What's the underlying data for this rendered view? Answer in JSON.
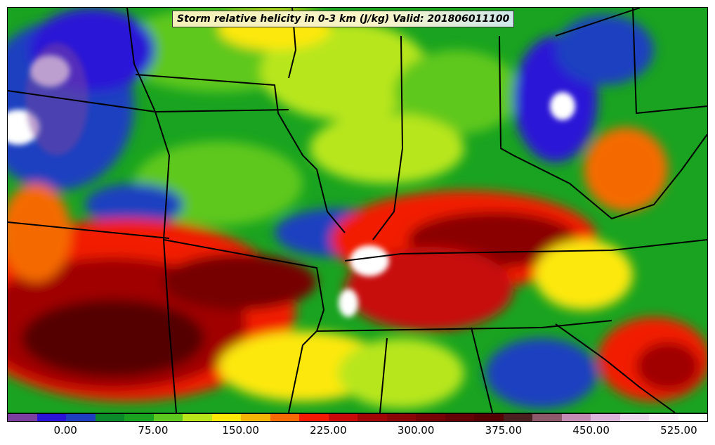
{
  "title": "Storm relative helicity in 0-3 km (J/kg) Valid: 201806011100",
  "colorbar": {
    "colors": [
      "#7b3fa0",
      "#2a12d6",
      "#1e40c0",
      "#0b8a2a",
      "#19a320",
      "#5fc81e",
      "#b8e61a",
      "#fde80a",
      "#f5b405",
      "#f56a05",
      "#f21a05",
      "#c80a0a",
      "#a00606",
      "#8a0505",
      "#760404",
      "#640303",
      "#540202",
      "#4a1f1f",
      "#8c5a6a",
      "#c48cb4",
      "#dcb4dc",
      "#f0dcf0",
      "#faeefa",
      "#ffffff"
    ],
    "tick_labels": [
      "0.00",
      "75.00",
      "150.00",
      "225.00",
      "300.00",
      "375.00",
      "450.00",
      "525.00"
    ],
    "tick_values": [
      0,
      75,
      150,
      225,
      300,
      375,
      450,
      525
    ],
    "min": -50,
    "max": 550
  }
}
